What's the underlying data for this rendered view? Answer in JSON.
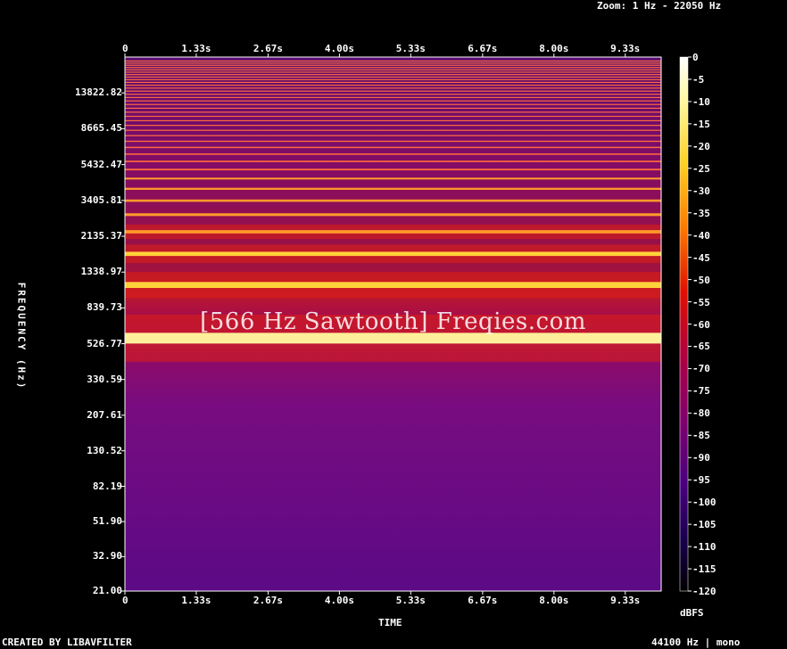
{
  "header": {
    "zoom_label": "Zoom: 1 Hz - 22050 Hz"
  },
  "footer": {
    "left": "CREATED BY LIBAVFILTER",
    "right": "44100 Hz | mono"
  },
  "overlay_text": "[566 Hz Sawtooth] Freqies.com",
  "colors": {
    "background": "#000000",
    "frame": "#ffffff"
  },
  "chart_data": {
    "type": "heatmap",
    "xlabel": "TIME",
    "ylabel": "FREQUENCY (Hz)",
    "x_ticks": [
      "0",
      "1.33s",
      "2.67s",
      "4.00s",
      "5.33s",
      "6.67s",
      "8.00s",
      "9.33s"
    ],
    "x_tick_values": [
      0,
      1.33,
      2.67,
      4.0,
      5.33,
      6.67,
      8.0,
      9.33
    ],
    "xlim": [
      0,
      10
    ],
    "y_scale": "log",
    "y_ticks": [
      "21.00",
      "32.90",
      "51.90",
      "82.19",
      "130.52",
      "207.61",
      "330.59",
      "526.77",
      "839.73",
      "1338.97",
      "2135.37",
      "3405.81",
      "5432.47",
      "8665.45",
      "13822.82"
    ],
    "y_tick_values": [
      21.0,
      32.9,
      51.9,
      82.19,
      130.52,
      207.61,
      330.59,
      526.77,
      839.73,
      1338.97,
      2135.37,
      3405.81,
      5432.47,
      8665.45,
      13822.82
    ],
    "ylim": [
      21.0,
      22050
    ],
    "fundamental_hz": 566,
    "harmonics_hz": [
      566,
      1132,
      1698,
      2264,
      2830,
      3396,
      3962,
      4528,
      5094,
      5660,
      6226,
      6792,
      7358,
      7924,
      8490,
      9056,
      9622,
      10188,
      10754,
      11320,
      11886,
      12452,
      13018,
      13584,
      14150,
      14716,
      15282,
      15848,
      16414,
      16980,
      17546,
      18112,
      18678,
      19244,
      19810,
      20376,
      20942
    ],
    "colorbar": {
      "label": "dBFS",
      "ticks": [
        "0",
        "-5",
        "-10",
        "-15",
        "-20",
        "-25",
        "-30",
        "-35",
        "-40",
        "-45",
        "-50",
        "-55",
        "-60",
        "-65",
        "-70",
        "-75",
        "-80",
        "-85",
        "-90",
        "-95",
        "-100",
        "-105",
        "-110",
        "-115",
        "-120"
      ],
      "range": [
        -120,
        0
      ]
    }
  }
}
